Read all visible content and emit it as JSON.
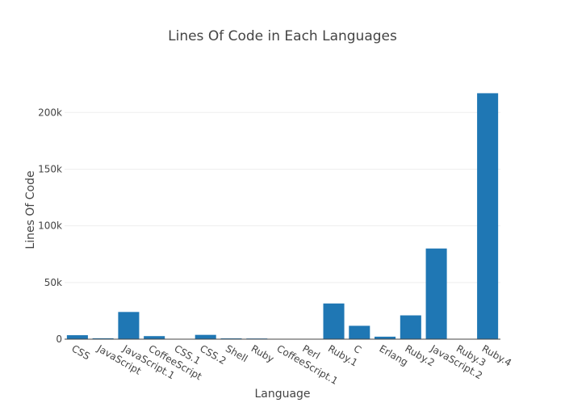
{
  "chart_data": {
    "type": "bar",
    "title": "Lines Of Code in Each Languages",
    "xlabel": "Language",
    "ylabel": "Lines Of Code",
    "categories": [
      "CSS",
      "JavaScript",
      "JavaScript.1",
      "CoffeeScript",
      "CSS.1",
      "CSS.2",
      "Shell",
      "Ruby",
      "CoffeeScript.1",
      "Perl",
      "Ruby.1",
      "C",
      "Erlang",
      "Ruby.2",
      "JavaScript.2",
      "Ruby.3",
      "Ruby.4"
    ],
    "values": [
      3500,
      800,
      24000,
      2700,
      300,
      3800,
      700,
      600,
      300,
      200,
      31500,
      11800,
      2200,
      21000,
      80000,
      300,
      217000
    ],
    "ylim": [
      0,
      228000
    ],
    "yticks": [
      0,
      50000,
      100000,
      150000,
      200000
    ],
    "ytick_labels": [
      "0",
      "50k",
      "100k",
      "150k",
      "200k"
    ],
    "grid": true,
    "legend": "none",
    "colors": {
      "bar": "#1f77b4",
      "grid": "#eeeeee",
      "axis": "#444444"
    }
  }
}
